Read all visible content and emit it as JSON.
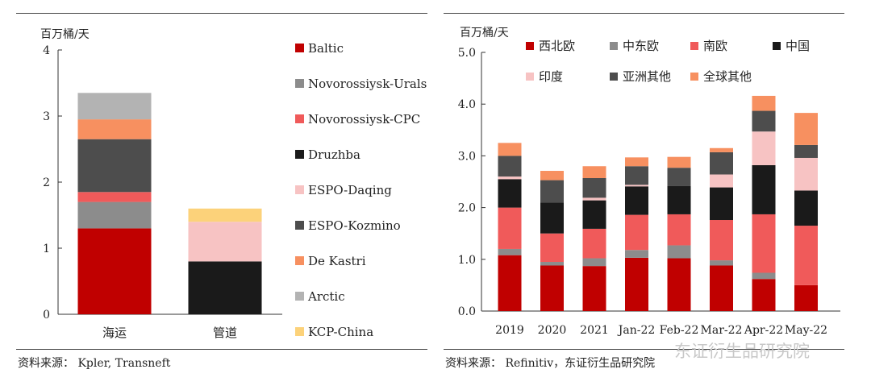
{
  "colors": {
    "Baltic": "#c00000",
    "Novorossiysk-Urals": "#8c8c8c",
    "Novorossiysk-CPC": "#f05a5a",
    "Druzhba": "#1a1a1a",
    "ESPO-Daqing": "#f7c3c3",
    "ESPO-Kozmino": "#4d4d4d",
    "De Kastri": "#f79060",
    "Arctic": "#b3b3b3",
    "KCP-China": "#fcd27a",
    "西北欧": "#c00000",
    "中东欧": "#8c8c8c",
    "南欧": "#f05a5a",
    "中国": "#1a1a1a",
    "印度": "#f7c3c3",
    "亚洲其他": "#4d4d4d",
    "全球其他": "#f79060"
  },
  "left": {
    "source": "资料来源： Kpler, Transneft"
  },
  "right": {
    "source": "资料来源： Refinitiv，东证衍生品研究院"
  },
  "watermark": "东证衍生品研究院",
  "chart_data": [
    {
      "type": "bar",
      "stacked": true,
      "ylabel": "百万桶/天",
      "ylim": [
        0,
        4
      ],
      "yticks": [
        "0",
        "1",
        "2",
        "3",
        "4"
      ],
      "categories": [
        "海运",
        "管道"
      ],
      "legend_position": "right",
      "series": [
        {
          "name": "Baltic",
          "values": [
            1.3,
            0
          ]
        },
        {
          "name": "Novorossiysk-Urals",
          "values": [
            0.4,
            0
          ]
        },
        {
          "name": "Novorossiysk-CPC",
          "values": [
            0.15,
            0
          ]
        },
        {
          "name": "Druzhba",
          "values": [
            0,
            0.8
          ]
        },
        {
          "name": "ESPO-Daqing",
          "values": [
            0,
            0.6
          ]
        },
        {
          "name": "ESPO-Kozmino",
          "values": [
            0.8,
            0
          ]
        },
        {
          "name": "De Kastri",
          "values": [
            0.3,
            0
          ]
        },
        {
          "name": "Arctic",
          "values": [
            0.4,
            0
          ]
        },
        {
          "name": "KCP-China",
          "values": [
            0,
            0.2
          ]
        }
      ]
    },
    {
      "type": "bar",
      "stacked": true,
      "ylabel": "百万桶/天",
      "ylim": [
        0,
        5
      ],
      "yticks": [
        "0.0",
        "1.0",
        "2.0",
        "3.0",
        "4.0",
        "5.0"
      ],
      "categories": [
        "2019",
        "2020",
        "2021",
        "Jan-22",
        "Feb-22",
        "Mar-22",
        "Apr-22",
        "May-22"
      ],
      "legend_position": "top",
      "series": [
        {
          "name": "西北欧",
          "values": [
            1.08,
            0.88,
            0.87,
            1.03,
            1.02,
            0.88,
            0.62,
            0.5
          ]
        },
        {
          "name": "中东欧",
          "values": [
            0.12,
            0.07,
            0.15,
            0.15,
            0.25,
            0.1,
            0.12,
            0
          ]
        },
        {
          "name": "南欧",
          "values": [
            0.8,
            0.55,
            0.57,
            0.68,
            0.6,
            0.78,
            1.13,
            1.15
          ]
        },
        {
          "name": "中国",
          "values": [
            0.55,
            0.6,
            0.55,
            0.55,
            0.55,
            0.63,
            0.95,
            0.68
          ]
        },
        {
          "name": "印度",
          "values": [
            0.05,
            0,
            0.05,
            0.03,
            0,
            0.25,
            0.65,
            0.63
          ]
        },
        {
          "name": "亚洲其他",
          "values": [
            0.4,
            0.43,
            0.38,
            0.36,
            0.35,
            0.43,
            0.4,
            0.25
          ]
        },
        {
          "name": "全球其他",
          "values": [
            0.25,
            0.18,
            0.23,
            0.17,
            0.21,
            0.08,
            0.29,
            0.62
          ]
        }
      ]
    }
  ]
}
